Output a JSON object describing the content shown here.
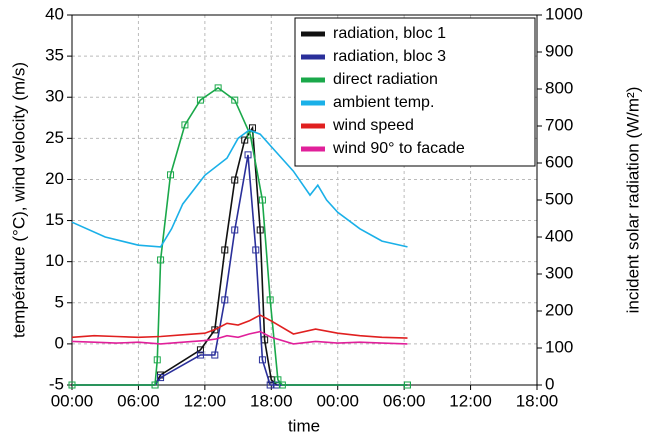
{
  "chart_data": {
    "type": "line",
    "xlabel": "time",
    "ylabel": "température (°C), wind velocity (m/s)",
    "y2label": "incident solar radiation (W/m²)",
    "xlim": [
      0,
      42
    ],
    "xticks": [
      {
        "value": 0,
        "label": "00:00"
      },
      {
        "value": 6,
        "label": "06:00"
      },
      {
        "value": 12,
        "label": "12:00"
      },
      {
        "value": 18,
        "label": "18:00"
      },
      {
        "value": 24,
        "label": "00:00"
      },
      {
        "value": 30,
        "label": "06:00"
      },
      {
        "value": 36,
        "label": "12:00"
      },
      {
        "value": 42,
        "label": "18:00"
      }
    ],
    "ylim": [
      -5,
      40
    ],
    "yticks": [
      -5,
      0,
      5,
      10,
      15,
      20,
      25,
      30,
      35,
      40
    ],
    "y2lim": [
      0,
      1000
    ],
    "y2ticks": [
      0,
      100,
      200,
      300,
      400,
      500,
      600,
      700,
      800,
      900,
      1000
    ],
    "grid": true,
    "legend": "upper right",
    "series": [
      {
        "name": "radiation, bloc 1",
        "color": "#111111",
        "axis": "y2",
        "marker": "square",
        "x": [
          0,
          7.5,
          8,
          11.6,
          12.9,
          13.8,
          14.7,
          15.6,
          16.3,
          17,
          17.4,
          18,
          18.5,
          30.3
        ],
        "values": [
          0,
          0,
          27,
          95,
          149,
          365,
          554,
          662,
          695,
          419,
          122,
          14,
          0,
          0
        ]
      },
      {
        "name": "radiation, bloc 3",
        "color": "#2a2f9a",
        "axis": "y2",
        "marker": "square",
        "x": [
          0,
          7.5,
          8,
          11.6,
          12.9,
          13.8,
          14.7,
          15.9,
          16.6,
          17.2,
          17.9,
          18.5,
          30.3
        ],
        "values": [
          0,
          0,
          20,
          81,
          81,
          230,
          419,
          622,
          365,
          68,
          0,
          0,
          0
        ]
      },
      {
        "name": "direct radiation",
        "color": "#1aa84a",
        "axis": "y2",
        "marker": "square",
        "x": [
          0,
          7.5,
          7.7,
          8,
          8.9,
          10.2,
          11.6,
          13.2,
          14.7,
          16.1,
          17.2,
          17.9,
          18.6,
          19,
          30.3
        ],
        "values": [
          0,
          0,
          68,
          338,
          568,
          703,
          770,
          803,
          770,
          676,
          500,
          230,
          14,
          0,
          0
        ]
      },
      {
        "name": "ambient temp.",
        "color": "#1ab0e8",
        "x": [
          0,
          3,
          6,
          8,
          9,
          10,
          12,
          14,
          15,
          16,
          17,
          18,
          20,
          21.5,
          22.2,
          23,
          24,
          26,
          28,
          30.3
        ],
        "values": [
          14.8,
          13,
          12,
          11.8,
          14,
          17,
          20.5,
          22.6,
          25,
          26,
          25.5,
          24,
          21,
          18.1,
          19.3,
          17.5,
          16,
          14,
          12.5,
          11.8
        ]
      },
      {
        "name": "wind speed",
        "color": "#e02020",
        "x": [
          0,
          2,
          4,
          6,
          8,
          10,
          12,
          13,
          14,
          15,
          16,
          17,
          18,
          20,
          22,
          24,
          26,
          28,
          30.3
        ],
        "values": [
          0.8,
          1,
          0.9,
          0.8,
          0.9,
          1.1,
          1.3,
          1.8,
          2.5,
          2.3,
          2.8,
          3.5,
          2.8,
          1.2,
          1.8,
          1.3,
          1,
          0.8,
          0.7
        ]
      },
      {
        "name": "wind 90° to facade",
        "color": "#e0209a",
        "x": [
          0,
          2,
          4,
          6,
          8,
          10,
          12,
          13,
          14,
          15,
          16,
          17,
          18,
          20,
          22,
          24,
          26,
          28,
          30.3
        ],
        "values": [
          0.3,
          0.2,
          0.1,
          0.2,
          0,
          0.2,
          0.4,
          0.6,
          1,
          0.8,
          1.2,
          1.5,
          0.8,
          0,
          0.3,
          0.1,
          0.2,
          0.1,
          0
        ]
      }
    ]
  }
}
